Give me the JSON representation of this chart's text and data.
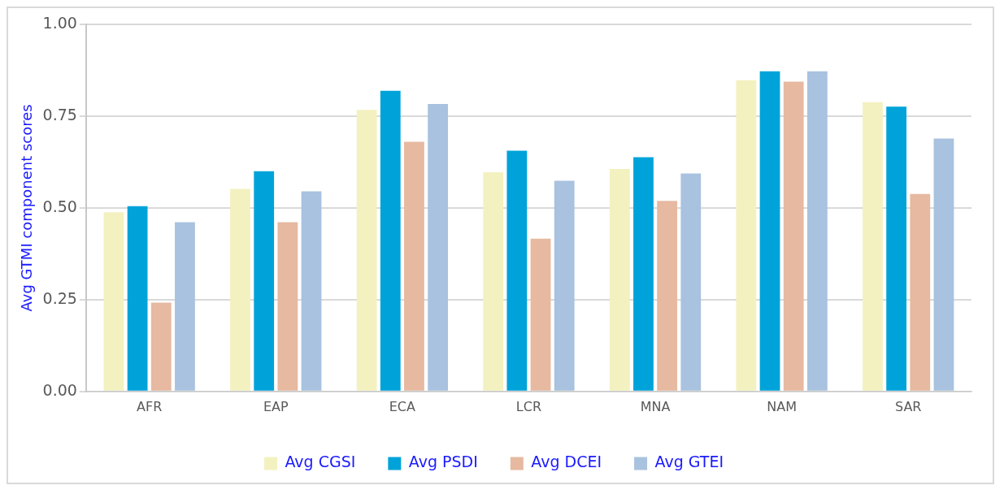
{
  "chart_data": {
    "type": "bar",
    "ylabel": "Avg GTMI component scores",
    "categories": [
      "AFR",
      "EAP",
      "ECA",
      "LCR",
      "MNA",
      "NAM",
      "SAR"
    ],
    "series": [
      {
        "name": "Avg CGSI",
        "color": "#f3f1c0",
        "values": [
          0.488,
          0.552,
          0.767,
          0.597,
          0.606,
          0.848,
          0.788
        ]
      },
      {
        "name": "Avg PSDI",
        "color": "#00a3d9",
        "values": [
          0.505,
          0.6,
          0.819,
          0.656,
          0.638,
          0.872,
          0.776
        ]
      },
      {
        "name": "Avg DCEI",
        "color": "#e6b9a0",
        "values": [
          0.242,
          0.461,
          0.68,
          0.416,
          0.519,
          0.844,
          0.538
        ]
      },
      {
        "name": "Avg GTEI",
        "color": "#a8c2df",
        "values": [
          0.461,
          0.545,
          0.783,
          0.574,
          0.594,
          0.872,
          0.689
        ]
      }
    ],
    "ylim": [
      0,
      1
    ],
    "yticks": [
      "0.00",
      {
        "value": 0.25,
        "label": "0.25"
      },
      {
        "value": 0.5,
        "label": "0.50"
      },
      {
        "value": 0.75,
        "label": "0.75"
      },
      {
        "value": 1,
        "label": "1.00"
      }
    ],
    "grid": "y",
    "legend": "bottom"
  }
}
